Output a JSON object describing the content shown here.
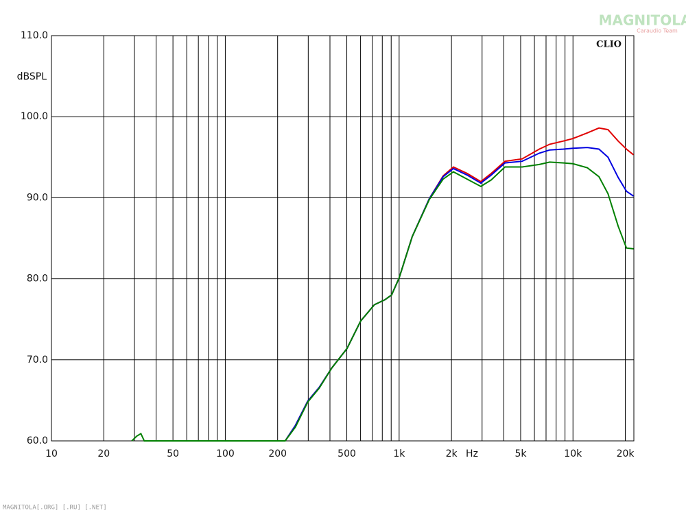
{
  "chart_data": {
    "type": "line",
    "y_label": "dBSPL",
    "x_label": "Hz",
    "annotation": "CLIO",
    "watermark": "MAGNITOLA",
    "watermark_sub": "Caraudio Team",
    "footer": "MAGNITOLA[.ORG] [.RU] [.NET]",
    "log_x": true,
    "grid": true,
    "xlim": [
      10,
      22400
    ],
    "ylim": [
      60,
      110
    ],
    "xticks": [
      10,
      20,
      50,
      100,
      200,
      500,
      {
        "value": 1000,
        "label": "1k"
      },
      {
        "value": 2000,
        "label": "2k"
      },
      {
        "value": 5000,
        "label": "5k"
      },
      {
        "value": 10000,
        "label": "10k"
      },
      {
        "value": 20000,
        "label": "20k"
      }
    ],
    "xminor": [
      30,
      40,
      60,
      70,
      80,
      90,
      300,
      400,
      600,
      700,
      800,
      900,
      3000,
      4000,
      6000,
      7000,
      8000,
      9000
    ],
    "yticks": [
      {
        "value": 60,
        "label": "60.0"
      },
      {
        "value": 70,
        "label": "70.0"
      },
      {
        "value": 80,
        "label": "80.0"
      },
      {
        "value": 90,
        "label": "90.0"
      },
      {
        "value": 100,
        "label": "100.0"
      },
      {
        "value": 110,
        "label": "110.0"
      }
    ],
    "x": [
      29,
      31,
      32.7,
      34.2,
      221,
      253,
      298,
      347,
      410,
      501,
      601,
      721,
      827,
      905,
      1000,
      1189,
      1493,
      1791,
      2051,
      2460,
      2951,
      3388,
      4064,
      5105,
      6400,
      7345,
      8810,
      10000,
      12100,
      14100,
      15900,
      18200,
      20300,
      22300
    ],
    "series": [
      {
        "color": "#e00000",
        "values": [
          null,
          null,
          null,
          null,
          60,
          61.9,
          64.9,
          66.6,
          69.0,
          71.4,
          74.8,
          76.8,
          77.4,
          78.0,
          80.1,
          85.2,
          89.9,
          92.7,
          93.8,
          93.0,
          92.0,
          93.0,
          94.5,
          94.8,
          96.0,
          96.6,
          97.0,
          97.3,
          98.0,
          98.6,
          98.4,
          97.0,
          96.0,
          95.3
        ]
      },
      {
        "color": "#0000e0",
        "values": [
          null,
          null,
          null,
          null,
          60,
          61.9,
          64.9,
          66.6,
          69.0,
          71.4,
          74.8,
          76.8,
          77.4,
          78.0,
          80.1,
          85.2,
          89.9,
          92.6,
          93.6,
          92.8,
          91.8,
          92.8,
          94.3,
          94.5,
          95.5,
          95.9,
          96.0,
          96.1,
          96.2,
          96.0,
          95.0,
          92.5,
          90.8,
          90.2
        ]
      },
      {
        "color": "#008000",
        "values": [
          60,
          60.6,
          60.9,
          60,
          60,
          61.7,
          64.8,
          66.5,
          69.0,
          71.4,
          74.8,
          76.8,
          77.4,
          78.0,
          80.1,
          85.2,
          89.8,
          92.3,
          93.2,
          92.3,
          91.4,
          92.2,
          93.8,
          93.8,
          94.1,
          94.4,
          94.3,
          94.2,
          93.7,
          92.6,
          90.5,
          86.5,
          83.8,
          83.7
        ]
      }
    ]
  }
}
